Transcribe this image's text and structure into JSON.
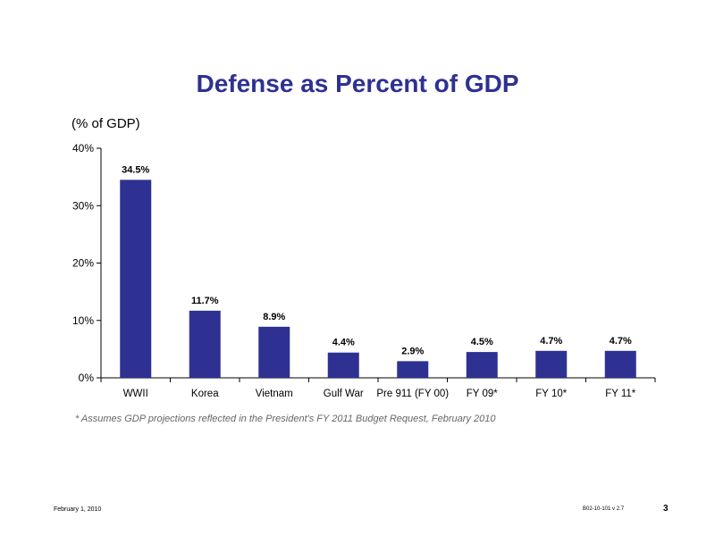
{
  "slide": {
    "title": "Defense as Percent of GDP",
    "unit_label": "(% of GDP)",
    "footnote": "*  Assumes GDP projections reflected in the President's FY 2011 Budget Request, February 2010",
    "footer_date": "February 1, 2010",
    "footer_code": "B02-10-101 v 2.7",
    "page_number": "3"
  },
  "chart_data": {
    "type": "bar",
    "title": "Defense as Percent of GDP",
    "ylabel": "(% of GDP)",
    "xlabel": "",
    "categories": [
      "WWII",
      "Korea",
      "Vietnam",
      "Gulf War",
      "Pre 911 (FY 00)",
      "FY 09*",
      "FY 10*",
      "FY 11*"
    ],
    "values": [
      34.5,
      11.7,
      8.9,
      4.4,
      2.9,
      4.5,
      4.7,
      4.7
    ],
    "value_labels": [
      "34.5%",
      "11.7%",
      "8.9%",
      "4.4%",
      "2.9%",
      "4.5%",
      "4.7%",
      "4.7%"
    ],
    "ylim": [
      0,
      40
    ],
    "yticks": [
      0,
      10,
      20,
      30,
      40
    ],
    "ytick_labels": [
      "0%",
      "10%",
      "20%",
      "30%",
      "40%"
    ],
    "grid": false,
    "legend": "none",
    "bar_color": "#2E3192"
  }
}
